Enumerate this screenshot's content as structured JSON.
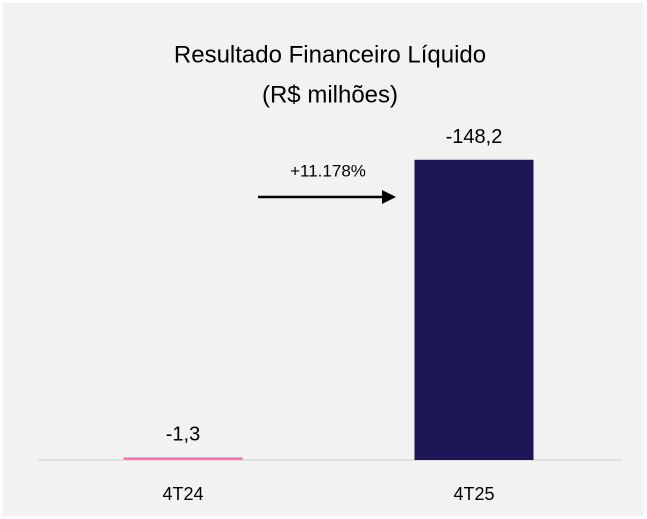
{
  "chart_data": {
    "type": "bar",
    "title": "Resultado Financeiro Líquido",
    "subtitle": "(R$ milhões)",
    "categories": [
      "4T24",
      "4T25"
    ],
    "values": [
      -1.3,
      -148.2
    ],
    "value_labels": [
      "-1,3",
      "-148,2"
    ],
    "colors": [
      "#ff6eb0",
      "#1c1654"
    ],
    "annotation": "+11.178%",
    "ylim": [
      0,
      -155
    ]
  }
}
